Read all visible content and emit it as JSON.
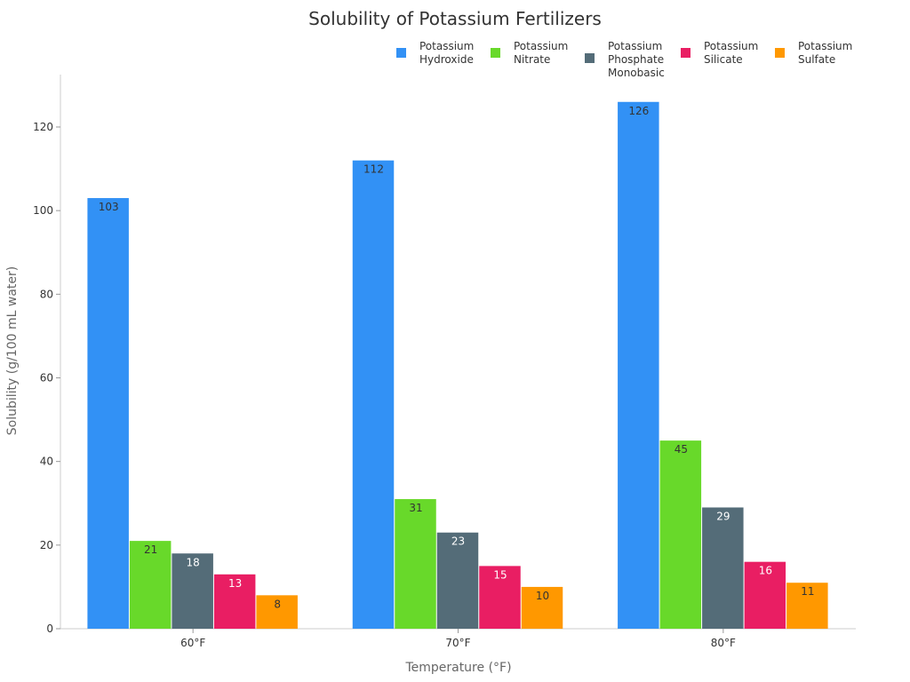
{
  "chart_data": {
    "type": "bar",
    "title": "Solubility of Potassium Fertilizers",
    "xlabel": "Temperature (°F)",
    "ylabel": "Solubility (g/100 mL water)",
    "categories": [
      "60°F",
      "70°F",
      "80°F"
    ],
    "ylim": [
      0,
      132
    ],
    "yticks": [
      0,
      20,
      40,
      60,
      80,
      100,
      120
    ],
    "grid": false,
    "legend_position": "top-right",
    "series": [
      {
        "name": "Potassium Hydroxide",
        "legend_lines": [
          "Potassium",
          "Hydroxide"
        ],
        "color": "#3291f5",
        "label_color": "#333333",
        "values": [
          103,
          112,
          126
        ]
      },
      {
        "name": "Potassium Nitrate",
        "legend_lines": [
          "Potassium",
          "Nitrate"
        ],
        "color": "#68d92a",
        "label_color": "#333333",
        "values": [
          21,
          31,
          45
        ]
      },
      {
        "name": "Potassium Phosphate Monobasic",
        "legend_lines": [
          "Potassium",
          "Phosphate",
          "Monobasic"
        ],
        "color": "#546c78",
        "label_color": "#ffffff",
        "values": [
          18,
          23,
          29
        ]
      },
      {
        "name": "Potassium Silicate",
        "legend_lines": [
          "Potassium",
          "Silicate"
        ],
        "color": "#e91e63",
        "label_color": "#ffffff",
        "values": [
          13,
          15,
          16
        ]
      },
      {
        "name": "Potassium Sulfate",
        "legend_lines": [
          "Potassium",
          "Sulfate"
        ],
        "color": "#ff9800",
        "label_color": "#333333",
        "values": [
          8,
          10,
          11
        ]
      }
    ]
  }
}
